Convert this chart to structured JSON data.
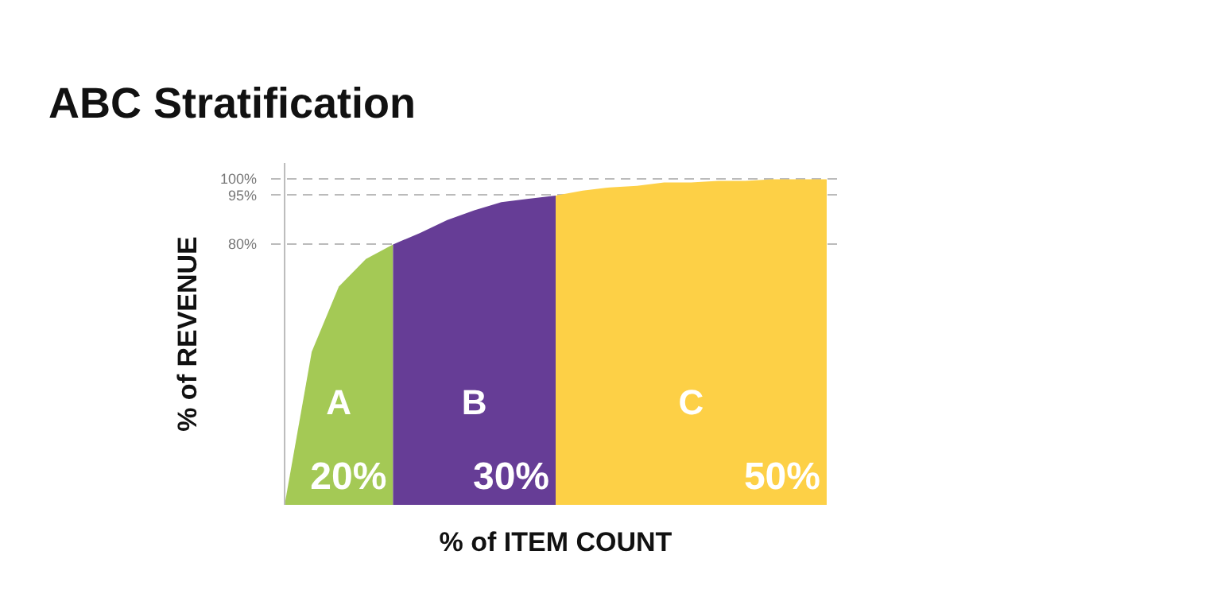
{
  "chart_data": {
    "type": "area",
    "title": "ABC Stratification",
    "xlabel": "% of ITEM COUNT",
    "ylabel": "% of REVENUE",
    "categories": [
      null,
      null,
      null,
      null,
      null,
      null,
      null,
      null,
      null,
      null,
      null,
      null,
      null,
      null,
      null,
      null,
      null,
      null,
      null,
      null,
      null
    ],
    "ylim": [
      0,
      105
    ],
    "yticks": [
      {
        "value": 80,
        "label": "80%"
      },
      {
        "value": 95,
        "label": "95%"
      },
      {
        "value": 100,
        "label": "100%"
      }
    ],
    "tick_labels": "y",
    "grid": "y",
    "series": [
      {
        "name": "A",
        "color": "#a4c955",
        "values": [
          0,
          47,
          67,
          75.5,
          80,
          null,
          null,
          null,
          null,
          null,
          null,
          null,
          null,
          null,
          null,
          null,
          null,
          null,
          null,
          null,
          null
        ]
      },
      {
        "name": "B",
        "color": "#663d96",
        "values": [
          null,
          null,
          null,
          null,
          80,
          83.5,
          87.5,
          90.5,
          93,
          94,
          95,
          null,
          null,
          null,
          null,
          null,
          null,
          null,
          null,
          null,
          null
        ]
      },
      {
        "name": "C",
        "color": "#fdd046",
        "values": [
          null,
          null,
          null,
          null,
          null,
          null,
          null,
          null,
          null,
          null,
          95,
          96.5,
          97.5,
          98,
          99,
          99,
          99.5,
          99.5,
          100,
          100,
          100
        ]
      }
    ],
    "annotations": [
      "20%",
      "30%",
      "50%"
    ]
  }
}
